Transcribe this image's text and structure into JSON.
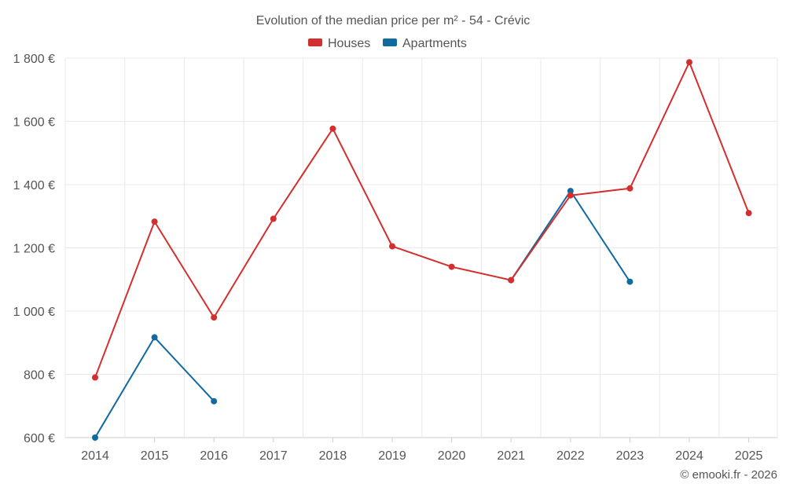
{
  "chart_data": {
    "type": "line",
    "title": "Evolution of the median price per m² - 54 - Crévic",
    "xlabel": "",
    "ylabel": "",
    "categories": [
      "2014",
      "2015",
      "2016",
      "2017",
      "2018",
      "2019",
      "2020",
      "2021",
      "2022",
      "2023",
      "2024",
      "2025"
    ],
    "ylim": [
      600,
      1800
    ],
    "yticks": [
      600,
      800,
      1000,
      1200,
      1400,
      1600,
      1800
    ],
    "ytick_labels": [
      "600 €",
      "800 €",
      "1 000 €",
      "1 200 €",
      "1 400 €",
      "1 600 €",
      "1 800 €"
    ],
    "grid": true,
    "legend_position": "top-center",
    "series": [
      {
        "name": "Houses",
        "color": "#d32f2f",
        "values": [
          790,
          1283,
          980,
          1292,
          1577,
          1205,
          1140,
          1098,
          1366,
          1388,
          1787,
          1310
        ]
      },
      {
        "name": "Apartments",
        "color": "#0f6aa0",
        "values": [
          600,
          917,
          715,
          null,
          null,
          null,
          null,
          1098,
          1380,
          1093,
          null,
          null
        ]
      }
    ]
  },
  "credit": "© emooki.fr - 2026"
}
